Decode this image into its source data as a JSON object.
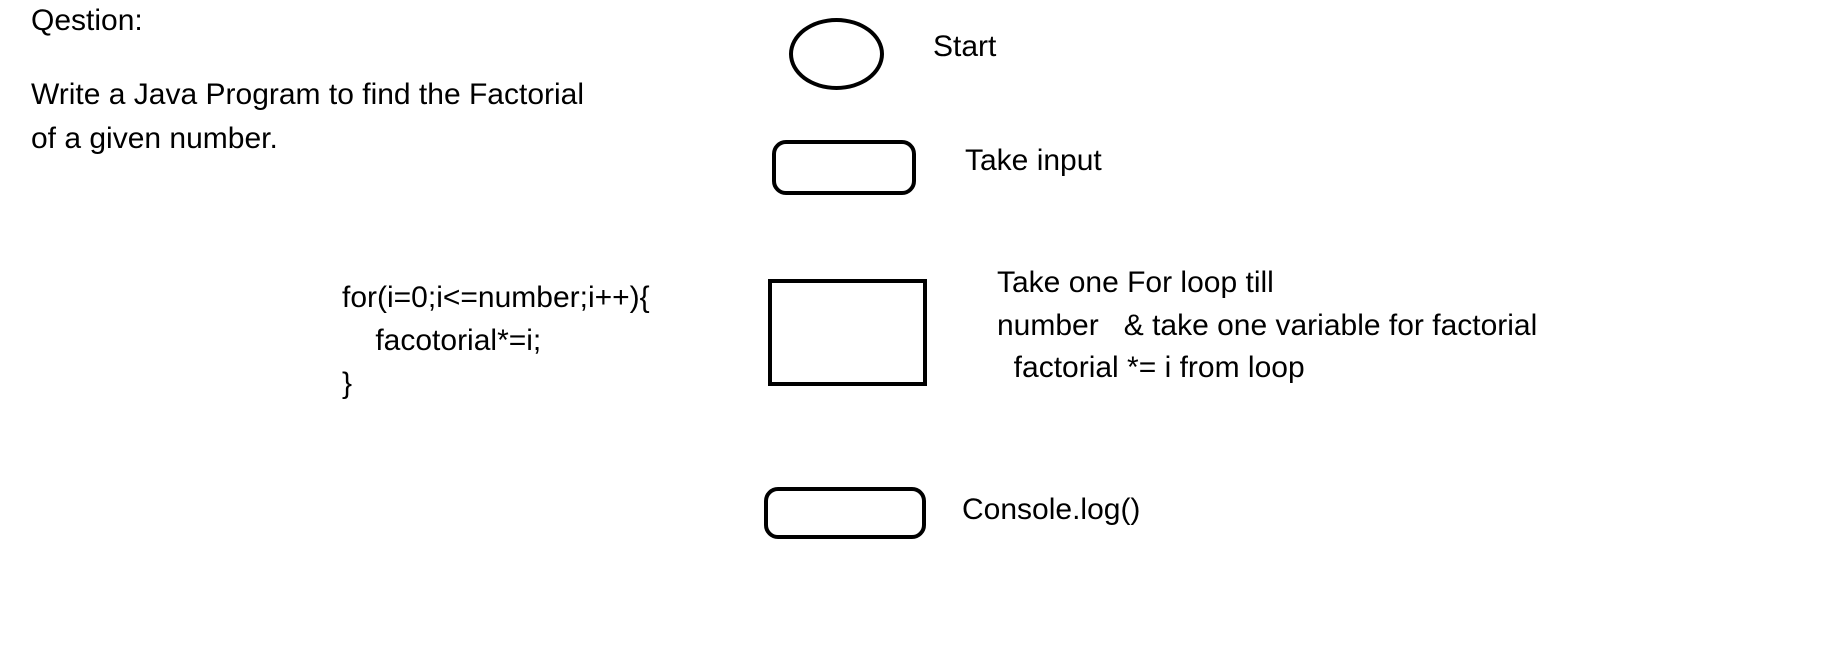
{
  "question": {
    "label": "Qestion:",
    "line1": "Write a Java Program to find the Factorial",
    "line2": "of a given number."
  },
  "code_snippet": {
    "line1": "for(i=0;i<=number;i++){",
    "line2": "    facotorial*=i;",
    "line3": "}"
  },
  "flowchart": {
    "start_label": "Start",
    "input_label": "Take input",
    "process_line1": "Take one For loop till",
    "process_line2": "number   & take one variable for factorial",
    "process_line3": "  factorial *= i from loop",
    "output_label": "Console.log()"
  }
}
